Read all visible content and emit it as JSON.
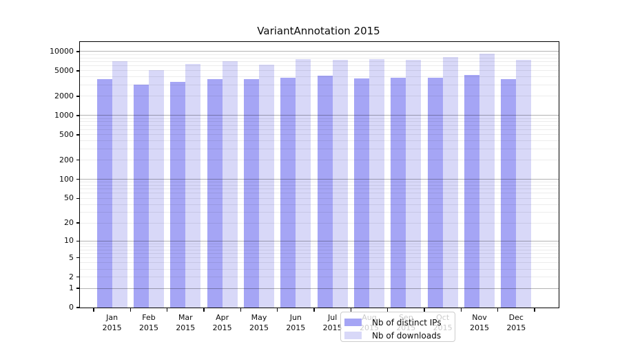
{
  "title": "VariantAnnotation 2015",
  "colors": {
    "distinct_ips": "#a5a5f5",
    "downloads": "#d8d8f8",
    "axis": "#000000",
    "grid_major": "#b3b3b3",
    "grid_minor": "#ececec",
    "legend_border": "#cccccc"
  },
  "legend": {
    "items": [
      {
        "key": "distinct_ips",
        "label": "Nb of distinct IPs"
      },
      {
        "key": "downloads",
        "label": "Nb of downloads"
      }
    ]
  },
  "chart_data": {
    "type": "bar",
    "title": "VariantAnnotation 2015",
    "categories": [
      "Jan 2015",
      "Feb 2015",
      "Mar 2015",
      "Apr 2015",
      "May 2015",
      "Jun 2015",
      "Jul 2015",
      "Aug 2015",
      "Sep 2015",
      "Oct 2015",
      "Nov 2015",
      "Dec 2015"
    ],
    "series": [
      {
        "name": "Nb of distinct IPs",
        "color": "#a5a5f5",
        "values": [
          3700,
          3050,
          3400,
          3700,
          3700,
          3900,
          4250,
          3800,
          3900,
          3950,
          4350,
          3750
        ]
      },
      {
        "name": "Nb of downloads",
        "color": "#d8d8f8",
        "values": [
          7150,
          5150,
          6400,
          7000,
          6250,
          7650,
          7450,
          7700,
          7450,
          8150,
          9200,
          7450
        ]
      }
    ],
    "xlabel": "",
    "ylabel": "",
    "yscale": "log1p",
    "yticks": [
      0,
      1,
      2,
      5,
      10,
      20,
      50,
      100,
      200,
      500,
      1000,
      2000,
      5000,
      10000
    ],
    "ylim": [
      0,
      14000
    ],
    "grid": true,
    "legend_position": "inside-bottom-center"
  }
}
